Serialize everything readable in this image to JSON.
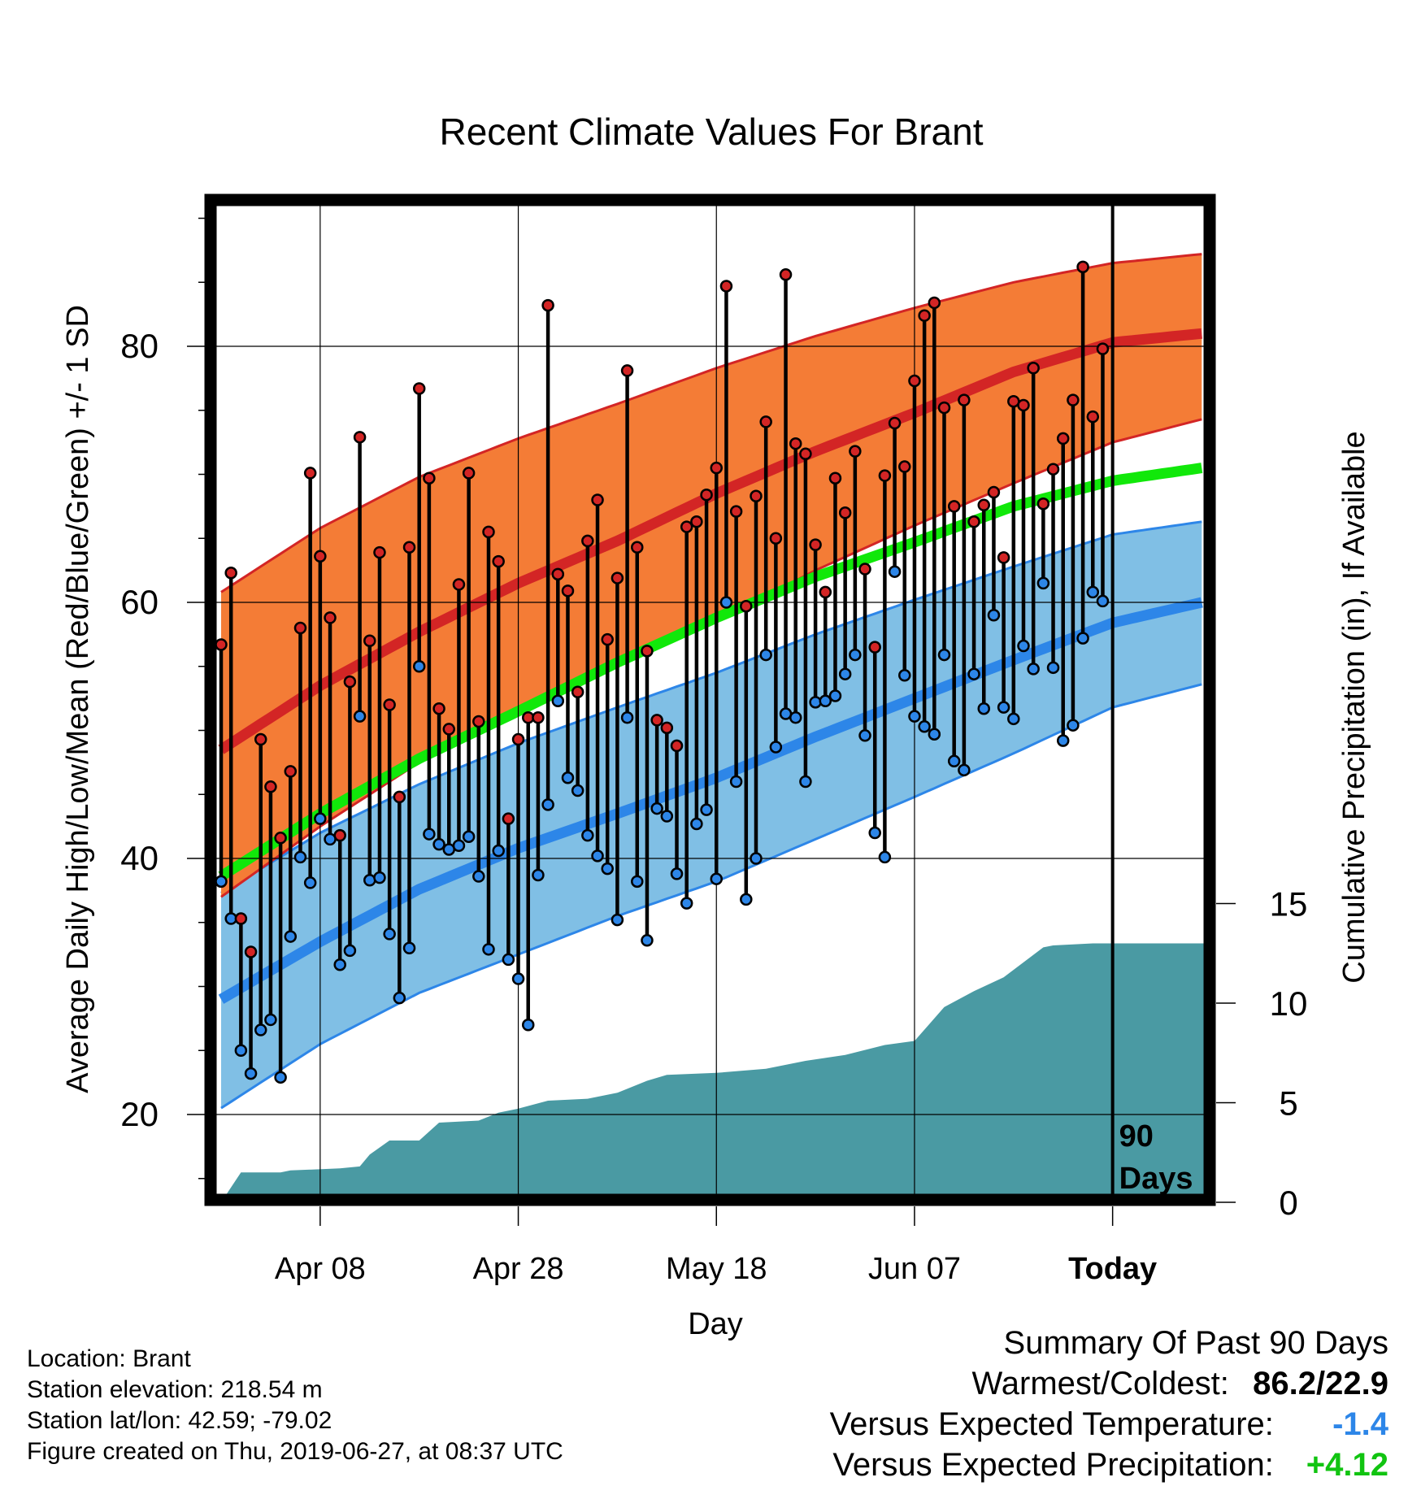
{
  "chart_data": {
    "type": "line",
    "title": "Recent Climate Values For Brant",
    "xlabel": "Day",
    "ylabel": "Average Daily High/Low/Mean (Red/Blue/Green) +/- 1 SD",
    "y2label": "Cumulative Precipitation (in), If Available",
    "x_tick_labels": [
      "Apr 08",
      "Apr 28",
      "May 18",
      "Jun 07",
      "Today"
    ],
    "x_tick_days": [
      10,
      30,
      50,
      70,
      90
    ],
    "y_ticks": [
      20,
      40,
      60,
      80
    ],
    "y2_ticks": [
      0,
      5,
      10,
      15
    ],
    "ylim": [
      13,
      90
    ],
    "y2lim": [
      0,
      15
    ],
    "days_window_label": "90 Days",
    "normals": {
      "high_mean": [
        [
          0,
          48.5
        ],
        [
          10,
          53.5
        ],
        [
          20,
          57.7
        ],
        [
          30,
          61.5
        ],
        [
          40,
          64.8
        ],
        [
          50,
          68.5
        ],
        [
          60,
          71.8
        ],
        [
          70,
          74.8
        ],
        [
          80,
          78
        ],
        [
          90,
          80.3
        ],
        [
          99,
          81
        ]
      ],
      "high_plus_sd": [
        [
          0,
          60.8
        ],
        [
          10,
          65.8
        ],
        [
          20,
          69.8
        ],
        [
          30,
          72.8
        ],
        [
          40,
          75.5
        ],
        [
          50,
          78.3
        ],
        [
          60,
          80.8
        ],
        [
          70,
          83
        ],
        [
          80,
          85
        ],
        [
          90,
          86.5
        ],
        [
          99,
          87.2
        ]
      ],
      "high_minus_sd": [
        [
          0,
          37
        ],
        [
          10,
          42.5
        ],
        [
          20,
          47.5
        ],
        [
          30,
          51.5
        ],
        [
          40,
          55
        ],
        [
          50,
          58.5
        ],
        [
          60,
          62.5
        ],
        [
          70,
          66
        ],
        [
          80,
          69.3
        ],
        [
          90,
          72.5
        ],
        [
          99,
          74.3
        ]
      ],
      "mean": [
        [
          0,
          38.6
        ],
        [
          10,
          43.5
        ],
        [
          20,
          47.8
        ],
        [
          30,
          51.5
        ],
        [
          40,
          55.3
        ],
        [
          50,
          58.8
        ],
        [
          60,
          62
        ],
        [
          70,
          64.7
        ],
        [
          80,
          67.5
        ],
        [
          90,
          69.5
        ],
        [
          99,
          70.5
        ]
      ],
      "low_mean": [
        [
          0,
          29
        ],
        [
          10,
          33.5
        ],
        [
          20,
          37.6
        ],
        [
          30,
          40.8
        ],
        [
          40,
          43.5
        ],
        [
          50,
          46.3
        ],
        [
          60,
          49.5
        ],
        [
          70,
          52.5
        ],
        [
          80,
          55.5
        ],
        [
          90,
          58.4
        ],
        [
          99,
          60
        ]
      ],
      "low_plus_sd": [
        [
          0,
          37.3
        ],
        [
          10,
          42
        ],
        [
          20,
          45.8
        ],
        [
          30,
          49
        ],
        [
          40,
          51.8
        ],
        [
          50,
          54.5
        ],
        [
          60,
          57.5
        ],
        [
          70,
          60.2
        ],
        [
          80,
          62.8
        ],
        [
          90,
          65.3
        ],
        [
          99,
          66.3
        ]
      ],
      "low_minus_sd": [
        [
          0,
          20.5
        ],
        [
          10,
          25.5
        ],
        [
          20,
          29.5
        ],
        [
          30,
          32.5
        ],
        [
          40,
          35.5
        ],
        [
          50,
          38.2
        ],
        [
          60,
          41.5
        ],
        [
          70,
          44.8
        ],
        [
          80,
          48.2
        ],
        [
          90,
          51.8
        ],
        [
          99,
          53.6
        ]
      ]
    },
    "daily_high": [
      56.7,
      62.3,
      35.3,
      32.7,
      49.3,
      45.6,
      41.6,
      46.8,
      58,
      70.1,
      63.6,
      58.8,
      41.8,
      53.8,
      72.9,
      57,
      63.9,
      52,
      44.8,
      64.3,
      76.7,
      69.7,
      51.7,
      50.1,
      61.4,
      70.1,
      50.7,
      65.5,
      63.2,
      43.1,
      49.3,
      51,
      51,
      83.2,
      62.2,
      60.9,
      53,
      64.8,
      68,
      57.1,
      61.9,
      78.1,
      64.3,
      56.2,
      50.8,
      50.2,
      48.8,
      65.9,
      66.3,
      68.4,
      70.5,
      84.7,
      67.1,
      59.7,
      68.3,
      74.1,
      65,
      85.6,
      72.4,
      71.6,
      64.5,
      60.8,
      69.7,
      67,
      71.8,
      62.6,
      56.5,
      69.9,
      74,
      70.6,
      77.3,
      82.4,
      83.4,
      75.2,
      67.5,
      75.8,
      66.3,
      67.6,
      68.6,
      63.5,
      75.7,
      75.4,
      78.3,
      67.7,
      70.4,
      72.8,
      75.8,
      86.2,
      74.5,
      79.8
    ],
    "daily_low": [
      38.2,
      35.3,
      25,
      23.2,
      26.6,
      27.4,
      22.9,
      33.9,
      40.1,
      38.1,
      43.1,
      41.5,
      31.7,
      32.8,
      51.1,
      38.3,
      38.5,
      34.1,
      29.1,
      33,
      55,
      41.9,
      41.1,
      40.7,
      41,
      41.7,
      38.6,
      32.9,
      40.6,
      32.1,
      30.6,
      27,
      38.7,
      44.2,
      52.3,
      46.3,
      45.3,
      41.8,
      40.2,
      39.2,
      35.2,
      51,
      38.2,
      33.6,
      43.9,
      43.3,
      38.8,
      36.5,
      42.7,
      43.8,
      38.4,
      60,
      46,
      36.8,
      40,
      55.9,
      48.7,
      51.3,
      51,
      46,
      52.2,
      52.3,
      52.7,
      54.4,
      55.9,
      49.6,
      42,
      40.1,
      62.4,
      54.3,
      51.1,
      50.3,
      49.7,
      55.9,
      47.6,
      46.9,
      54.4,
      51.7,
      59,
      51.8,
      50.9,
      56.6,
      54.8,
      61.5,
      54.9,
      49.2,
      50.4,
      57.2,
      60.8,
      60.1
    ],
    "precip_cumulative": [
      [
        0,
        0
      ],
      [
        2,
        1.5
      ],
      [
        6,
        1.5
      ],
      [
        7,
        1.6
      ],
      [
        12,
        1.7
      ],
      [
        14,
        1.8
      ],
      [
        15,
        2.4
      ],
      [
        17,
        3.1
      ],
      [
        20,
        3.1
      ],
      [
        22,
        4
      ],
      [
        26,
        4.1
      ],
      [
        28,
        4.5
      ],
      [
        30,
        4.7
      ],
      [
        33,
        5.1
      ],
      [
        37,
        5.2
      ],
      [
        40,
        5.5
      ],
      [
        43,
        6.1
      ],
      [
        45,
        6.4
      ],
      [
        50,
        6.5
      ],
      [
        55,
        6.7
      ],
      [
        59,
        7.1
      ],
      [
        63,
        7.4
      ],
      [
        67,
        7.9
      ],
      [
        70,
        8.1
      ],
      [
        73,
        9.8
      ],
      [
        76,
        10.6
      ],
      [
        79,
        11.3
      ],
      [
        83,
        12.8
      ],
      [
        84,
        12.9
      ],
      [
        88,
        13
      ]
    ]
  },
  "footer": {
    "location": "Location: Brant",
    "elevation": "Station elevation: 218.54 m",
    "latlon": "Station lat/lon: 42.59; -79.02",
    "created": "Figure created on Thu, 2019-06-27, at 08:37 UTC"
  },
  "summary": {
    "heading": "Summary Of Past 90 Days",
    "warm_cold_label": "Warmest/Coldest:",
    "warm_cold_value": "86.2/22.9",
    "temp_label": "Versus Expected Temperature:",
    "temp_value": "-1.4",
    "precip_label": "Versus Expected Precipitation:",
    "precip_value": "+4.12"
  },
  "colors": {
    "high_band": "#f47c36",
    "high_line": "#d32525",
    "mean_line": "#11e80a",
    "low_band": "#80bfe5",
    "low_line": "#2d86e8",
    "precip_fill": "#4a9aa3",
    "temp_anomaly": "#2d86e8",
    "precip_anomaly": "#11c411"
  }
}
